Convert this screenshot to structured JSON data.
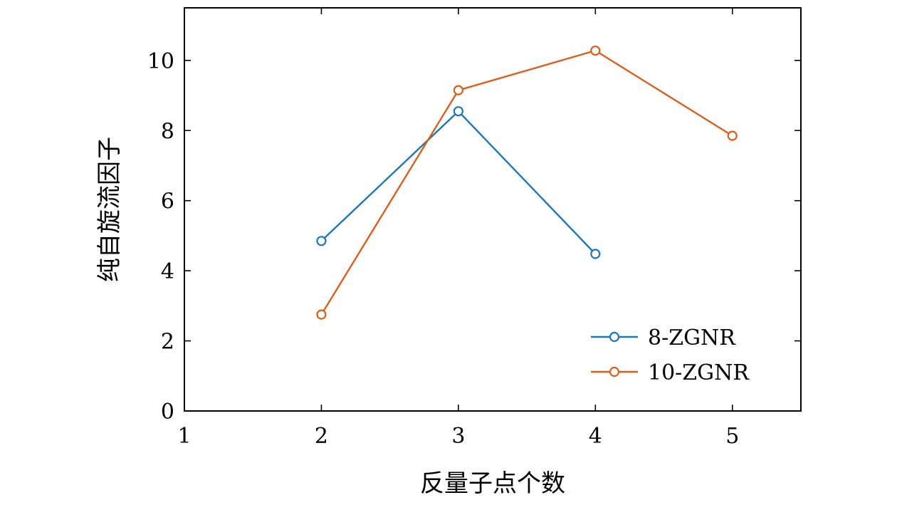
{
  "chart_data": {
    "type": "line",
    "xlabel": "反量子点个数",
    "ylabel": "纯自旋流因子",
    "xlim": [
      1,
      5.5
    ],
    "ylim": [
      0,
      11.5
    ],
    "xticks": [
      1,
      2,
      3,
      4,
      5
    ],
    "yticks": [
      0,
      2,
      4,
      6,
      8,
      10
    ],
    "grid": false,
    "legend_position": "bottom-right",
    "series": [
      {
        "name": "8-ZGNR",
        "color": "#1f77b4",
        "x": [
          2,
          3,
          4
        ],
        "y": [
          4.85,
          8.55,
          4.48
        ]
      },
      {
        "name": "10-ZGNR",
        "color": "#d95f1e",
        "x": [
          2,
          3,
          4,
          5
        ],
        "y": [
          2.75,
          9.15,
          10.28,
          7.85
        ]
      }
    ]
  }
}
